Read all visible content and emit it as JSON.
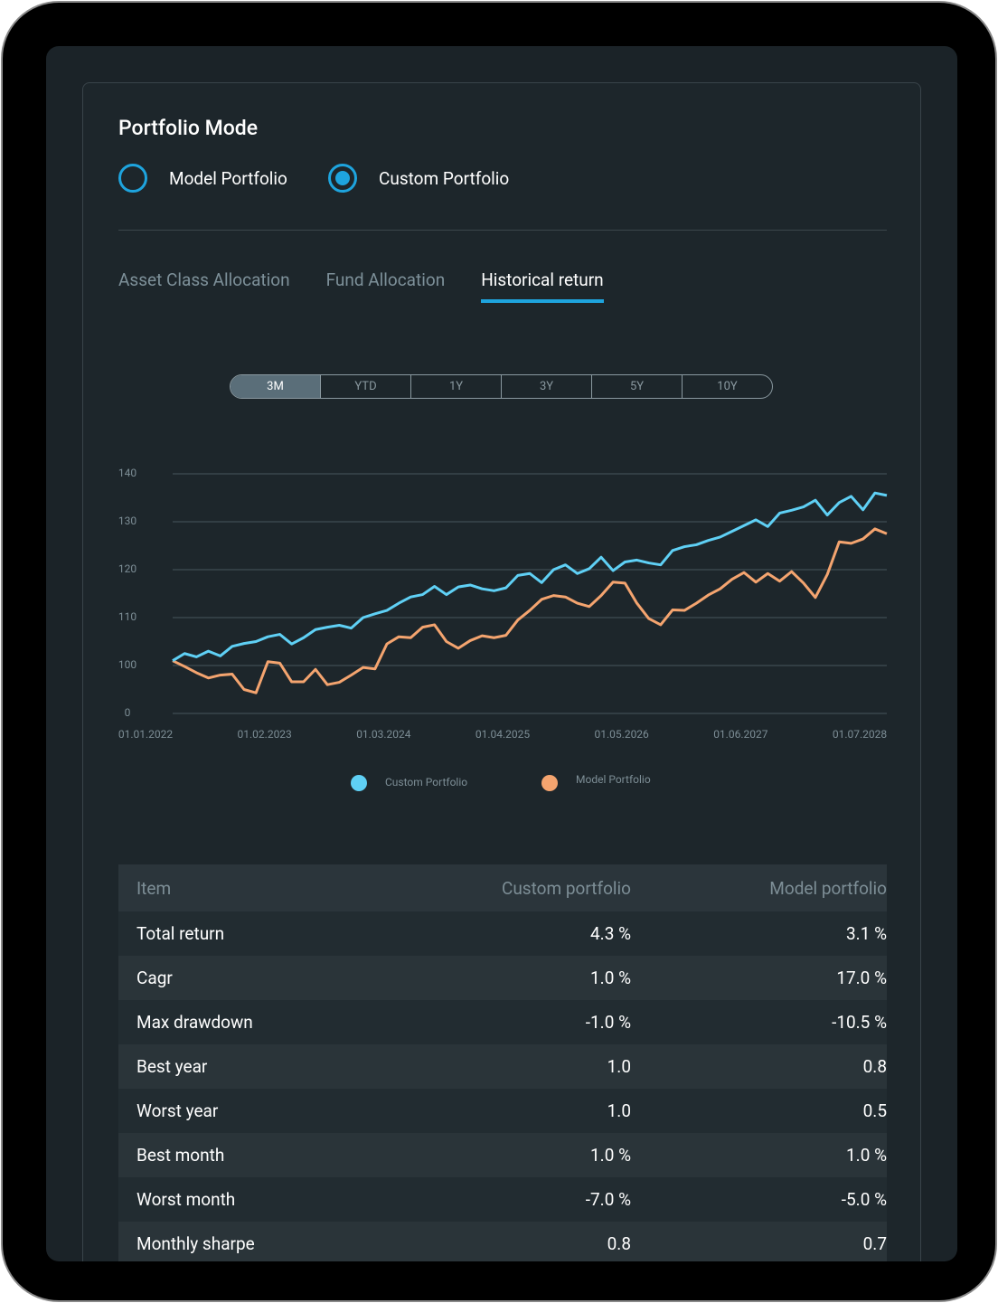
{
  "header": {
    "title": "Portfolio Mode"
  },
  "modes": [
    {
      "label": "Model Portfolio",
      "selected": false
    },
    {
      "label": "Custom Portfolio",
      "selected": true
    }
  ],
  "tabs": {
    "items": [
      "Asset Class Allocation",
      "Fund Allocation",
      "Historical return"
    ],
    "active": 2
  },
  "ranges": {
    "items": [
      "3M",
      "YTD",
      "1Y",
      "3Y",
      "5Y",
      "10Y"
    ],
    "active": 0
  },
  "chart_data": {
    "type": "line",
    "categories": [
      "01.01.2022",
      null,
      null,
      null,
      null,
      null,
      null,
      null,
      null,
      null,
      "01.02.2023",
      null,
      null,
      null,
      null,
      null,
      null,
      null,
      null,
      null,
      "01.03.2024",
      null,
      null,
      null,
      null,
      null,
      null,
      null,
      null,
      null,
      "01.04.2025",
      null,
      null,
      null,
      null,
      null,
      null,
      null,
      null,
      null,
      "01.05.2026",
      null,
      null,
      null,
      null,
      null,
      null,
      null,
      null,
      null,
      "01.06.2027",
      null,
      null,
      null,
      null,
      null,
      null,
      null,
      null,
      null,
      "01.07.2028"
    ],
    "series": [
      {
        "name": "Custom Portfolio",
        "color": "#5fd0f5",
        "values": [
          101,
          102.5,
          101.8,
          103,
          102,
          104,
          104.6,
          105,
          106,
          106.5,
          104.5,
          105.8,
          107.5,
          108,
          108.4,
          107.8,
          110,
          110.8,
          111.5,
          113,
          114.3,
          114.8,
          116.5,
          114.8,
          116.4,
          116.8,
          116,
          115.6,
          116.2,
          118.8,
          119.2,
          117.3,
          120,
          121,
          119.2,
          120.2,
          122.6,
          119.8,
          121.6,
          122,
          121.4,
          121,
          124,
          124.8,
          125.2,
          126.1,
          126.8,
          128,
          129.2,
          130.4,
          129,
          131.8,
          132.4,
          133.1,
          134.5,
          131.4,
          134,
          135.3,
          132.5,
          136,
          135.5
        ]
      },
      {
        "name": "Model Portfolio",
        "color": "#f4a46f",
        "values": [
          101,
          99.8,
          98.5,
          97.4,
          98,
          98.2,
          95,
          94.3,
          100.8,
          100.5,
          96.6,
          96.6,
          99.2,
          96,
          96.5,
          98,
          99.6,
          99.3,
          104.5,
          106,
          105.8,
          108,
          108.5,
          105,
          103.6,
          105.2,
          106.2,
          105.8,
          106.3,
          109.5,
          111.5,
          113.8,
          114.6,
          114.3,
          113,
          112.3,
          114.6,
          117.4,
          117.2,
          113,
          109.8,
          108.5,
          111.6,
          111.5,
          113,
          114.7,
          116,
          118,
          119.4,
          117.4,
          119.2,
          117.6,
          119.6,
          117.2,
          114.2,
          119,
          125.8,
          125.5,
          126.4,
          128.5,
          127.5
        ]
      }
    ],
    "ylim": [
      90,
      140
    ],
    "yticks": [
      {
        "value": 90,
        "label": "0"
      },
      100,
      110,
      120,
      130,
      140
    ],
    "grid": true
  },
  "table": {
    "header": [
      "Item",
      "Custom portfolio",
      "Model portfolio"
    ],
    "rows": [
      [
        "Total return",
        "4.3 %",
        "3.1 %"
      ],
      [
        "Cagr",
        "1.0 %",
        "17.0 %"
      ],
      [
        "Max drawdown",
        "-1.0 %",
        "-10.5 %"
      ],
      [
        "Best year",
        "1.0",
        "0.8"
      ],
      [
        "Worst year",
        "1.0",
        "0.5"
      ],
      [
        "Best month",
        "1.0 %",
        "1.0 %"
      ],
      [
        "Worst month",
        "-7.0 %",
        "-5.0 %"
      ],
      [
        "Monthly sharpe",
        "0.8",
        "0.7"
      ]
    ]
  }
}
